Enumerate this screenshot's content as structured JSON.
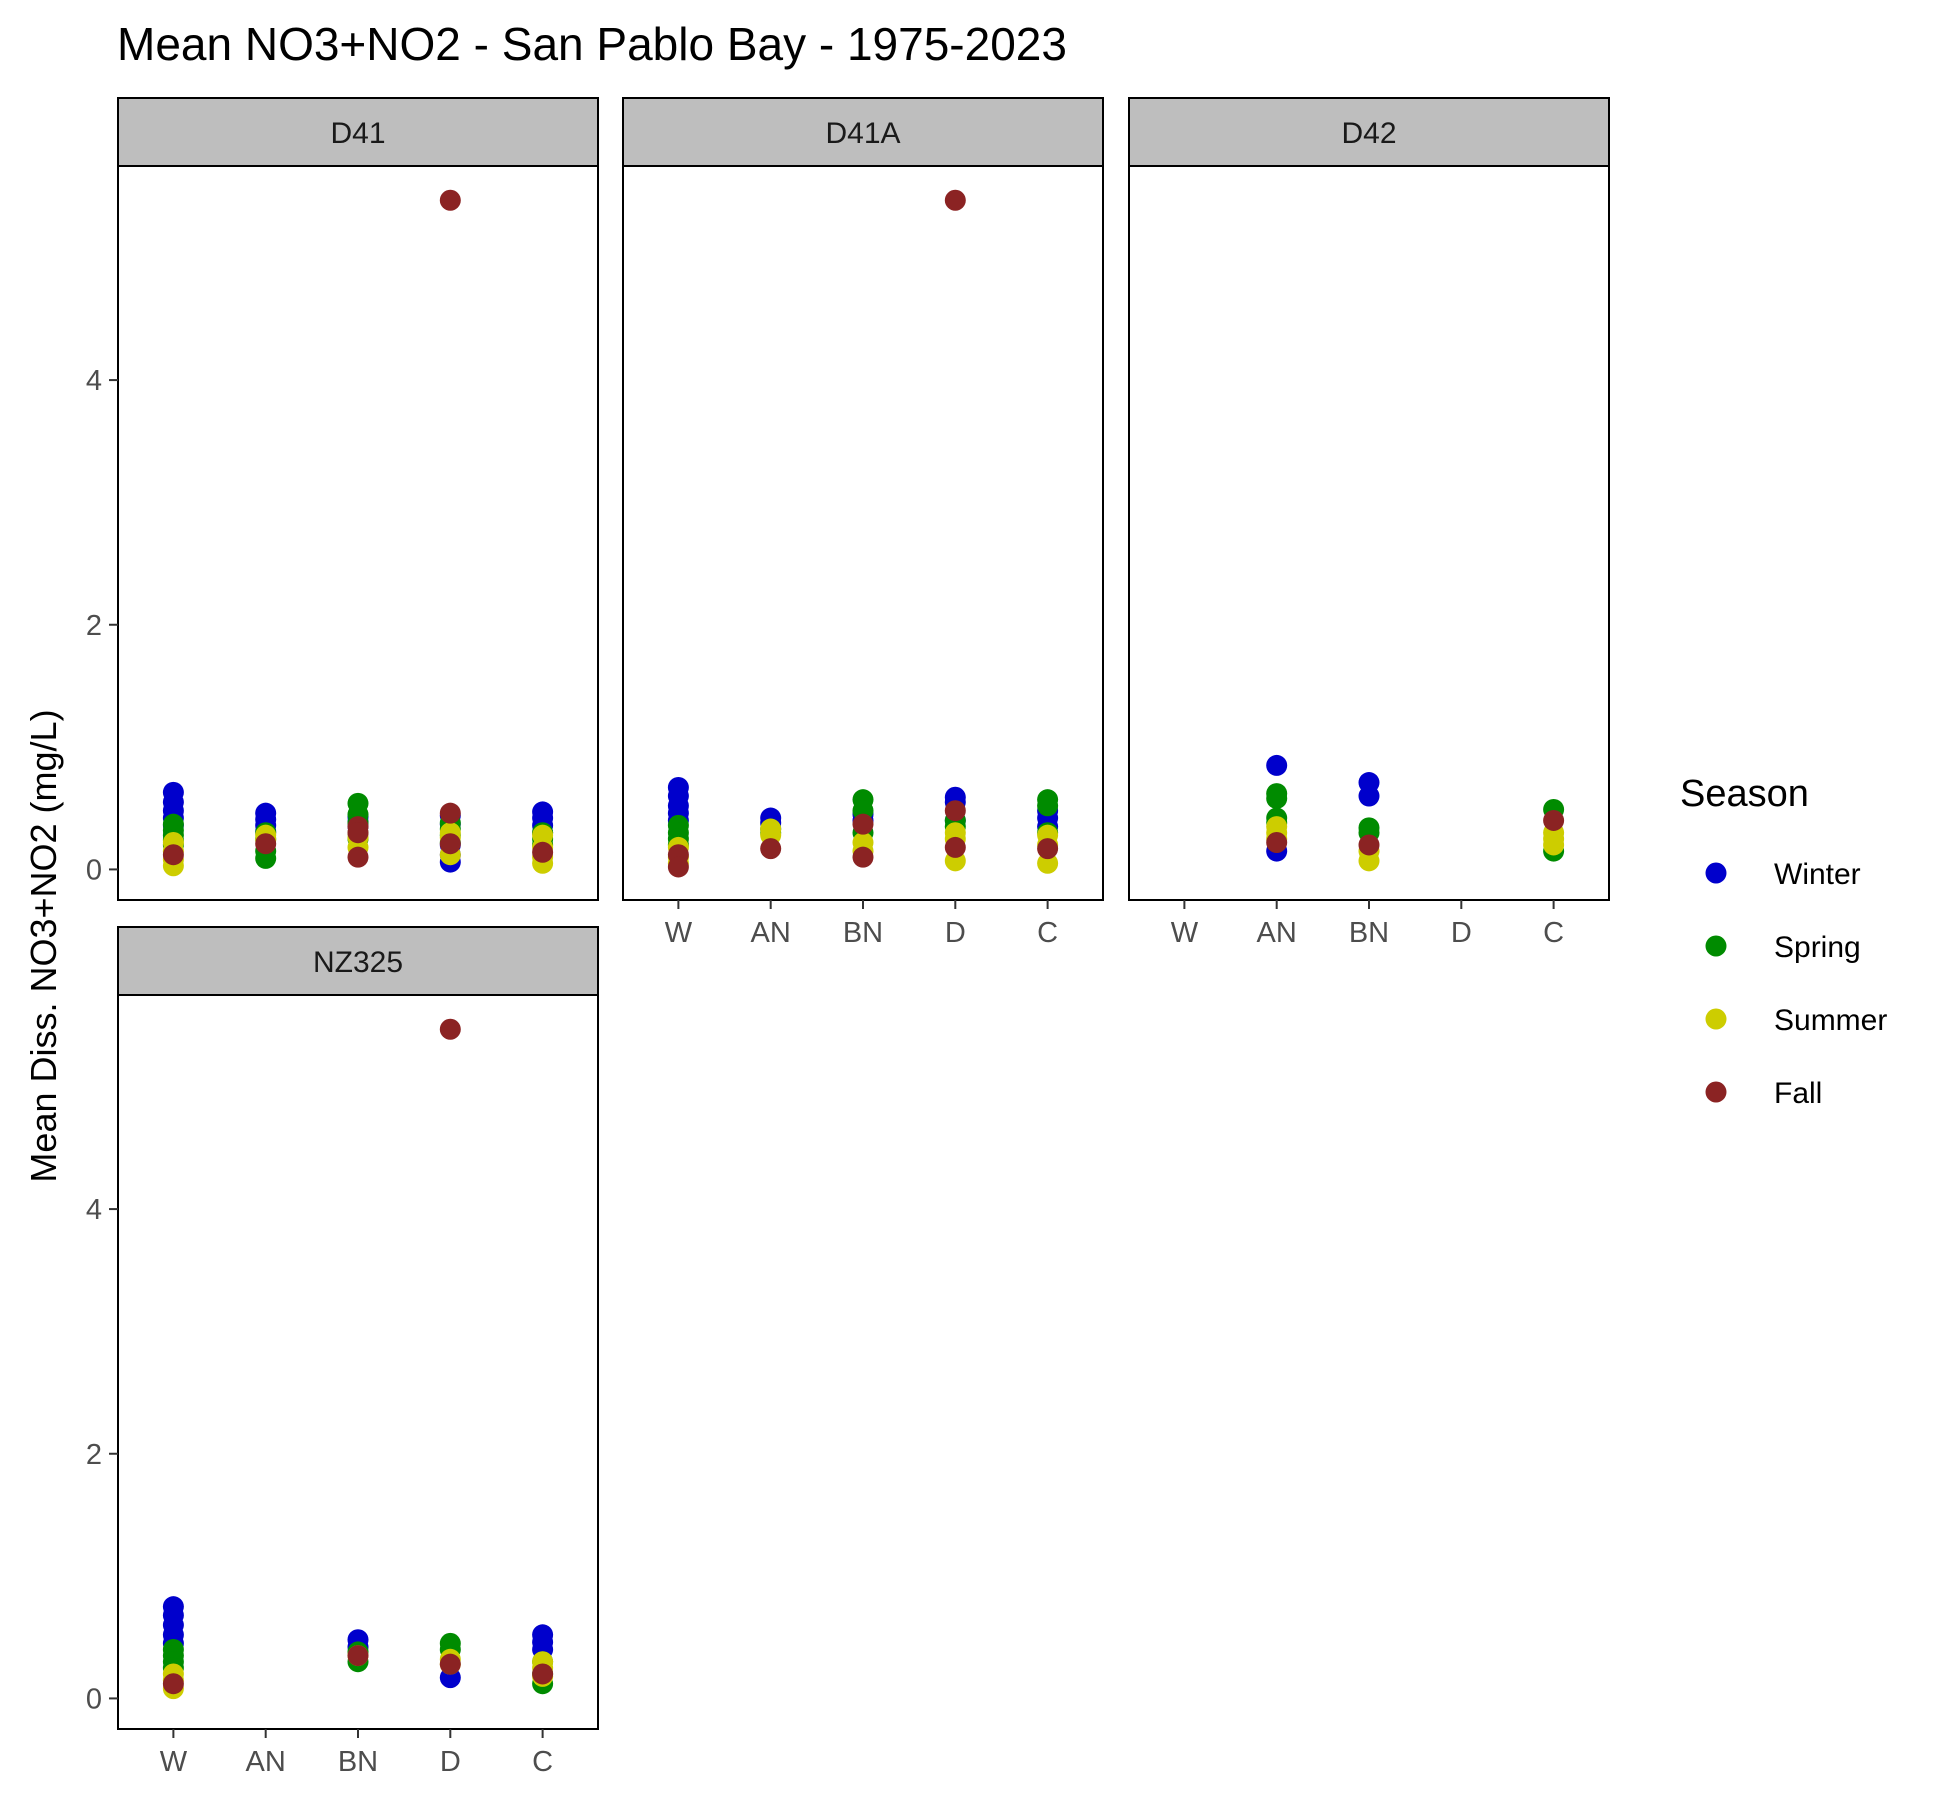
{
  "chart_data": {
    "type": "scatter",
    "title": "Mean NO3+NO2 - San Pablo Bay - 1975-2023",
    "xlabel": "",
    "ylabel": "Mean Diss. NO3+NO2 (mg/L)",
    "categories": [
      "W",
      "AN",
      "BN",
      "D",
      "C"
    ],
    "yticks": [
      "0",
      "2",
      "4"
    ],
    "ylim": [
      -0.25,
      5.75
    ],
    "facet_layout": "wrap-2x3",
    "grid": false,
    "legend": {
      "title": "Season",
      "position": "right",
      "entries": [
        {
          "name": "Winter",
          "color": "#0000CC"
        },
        {
          "name": "Spring",
          "color": "#008B00"
        },
        {
          "name": "Summer",
          "color": "#CDCD00"
        },
        {
          "name": "Fall",
          "color": "#8B2323"
        }
      ]
    },
    "panels": [
      {
        "label": "D41",
        "series": [
          {
            "season": "Winter",
            "points": [
              [
                "W",
                0.63
              ],
              [
                "W",
                0.55
              ],
              [
                "W",
                0.48
              ],
              [
                "W",
                0.42
              ],
              [
                "W",
                0.36
              ],
              [
                "AN",
                0.46
              ],
              [
                "AN",
                0.41
              ],
              [
                "AN",
                0.36
              ],
              [
                "AN",
                0.31
              ],
              [
                "BN",
                0.43
              ],
              [
                "BN",
                0.39
              ],
              [
                "BN",
                0.35
              ],
              [
                "BN",
                0.3
              ],
              [
                "D",
                0.44
              ],
              [
                "D",
                0.37
              ],
              [
                "D",
                0.2
              ],
              [
                "D",
                0.12
              ],
              [
                "D",
                0.06
              ],
              [
                "C",
                0.47
              ],
              [
                "C",
                0.42
              ],
              [
                "C",
                0.36
              ],
              [
                "C",
                0.3
              ]
            ]
          },
          {
            "season": "Spring",
            "points": [
              [
                "W",
                0.37
              ],
              [
                "W",
                0.32
              ],
              [
                "W",
                0.28
              ],
              [
                "W",
                0.24
              ],
              [
                "W",
                0.2
              ],
              [
                "AN",
                0.3
              ],
              [
                "AN",
                0.25
              ],
              [
                "AN",
                0.15
              ],
              [
                "AN",
                0.09
              ],
              [
                "BN",
                0.54
              ],
              [
                "BN",
                0.45
              ],
              [
                "BN",
                0.38
              ],
              [
                "BN",
                0.25
              ],
              [
                "D",
                0.38
              ],
              [
                "D",
                0.33
              ],
              [
                "D",
                0.28
              ],
              [
                "D",
                0.22
              ],
              [
                "C",
                0.3
              ],
              [
                "C",
                0.25
              ],
              [
                "C",
                0.2
              ]
            ]
          },
          {
            "season": "Summer",
            "points": [
              [
                "W",
                0.22
              ],
              [
                "W",
                0.15
              ],
              [
                "W",
                0.08
              ],
              [
                "W",
                0.03
              ],
              [
                "AN",
                0.28
              ],
              [
                "AN",
                0.24
              ],
              [
                "BN",
                0.3
              ],
              [
                "BN",
                0.26
              ],
              [
                "BN",
                0.18
              ],
              [
                "D",
                0.3
              ],
              [
                "D",
                0.26
              ],
              [
                "D",
                0.12
              ],
              [
                "C",
                0.28
              ],
              [
                "C",
                0.18
              ],
              [
                "C",
                0.1
              ],
              [
                "C",
                0.05
              ]
            ]
          },
          {
            "season": "Fall",
            "points": [
              [
                "W",
                0.12
              ],
              [
                "AN",
                0.21
              ],
              [
                "BN",
                0.35
              ],
              [
                "BN",
                0.3
              ],
              [
                "BN",
                0.1
              ],
              [
                "D",
                5.47
              ],
              [
                "D",
                0.46
              ],
              [
                "D",
                0.21
              ],
              [
                "C",
                0.14
              ]
            ]
          }
        ]
      },
      {
        "label": "D41A",
        "series": [
          {
            "season": "Winter",
            "points": [
              [
                "W",
                0.67
              ],
              [
                "W",
                0.6
              ],
              [
                "W",
                0.52
              ],
              [
                "W",
                0.46
              ],
              [
                "W",
                0.4
              ],
              [
                "AN",
                0.42
              ],
              [
                "AN",
                0.38
              ],
              [
                "BN",
                0.45
              ],
              [
                "BN",
                0.4
              ],
              [
                "D",
                0.59
              ],
              [
                "D",
                0.55
              ],
              [
                "D",
                0.4
              ],
              [
                "C",
                0.48
              ],
              [
                "C",
                0.42
              ],
              [
                "C",
                0.35
              ]
            ]
          },
          {
            "season": "Spring",
            "points": [
              [
                "W",
                0.36
              ],
              [
                "W",
                0.3
              ],
              [
                "W",
                0.25
              ],
              [
                "W",
                0.2
              ],
              [
                "AN",
                0.33
              ],
              [
                "AN",
                0.3
              ],
              [
                "BN",
                0.57
              ],
              [
                "BN",
                0.48
              ],
              [
                "BN",
                0.3
              ],
              [
                "D",
                0.4
              ],
              [
                "D",
                0.35
              ],
              [
                "C",
                0.57
              ],
              [
                "C",
                0.52
              ],
              [
                "C",
                0.3
              ]
            ]
          },
          {
            "season": "Summer",
            "points": [
              [
                "W",
                0.18
              ],
              [
                "W",
                0.1
              ],
              [
                "W",
                0.05
              ],
              [
                "AN",
                0.33
              ],
              [
                "AN",
                0.28
              ],
              [
                "BN",
                0.22
              ],
              [
                "BN",
                0.15
              ],
              [
                "D",
                0.3
              ],
              [
                "D",
                0.25
              ],
              [
                "D",
                0.07
              ],
              [
                "C",
                0.28
              ],
              [
                "C",
                0.2
              ],
              [
                "C",
                0.05
              ]
            ]
          },
          {
            "season": "Fall",
            "points": [
              [
                "W",
                0.12
              ],
              [
                "W",
                0.02
              ],
              [
                "AN",
                0.17
              ],
              [
                "BN",
                0.37
              ],
              [
                "BN",
                0.1
              ],
              [
                "D",
                5.47
              ],
              [
                "D",
                0.48
              ],
              [
                "D",
                0.18
              ],
              [
                "C",
                0.17
              ]
            ]
          }
        ]
      },
      {
        "label": "D42",
        "series": [
          {
            "season": "Winter",
            "points": [
              [
                "AN",
                0.85
              ],
              [
                "AN",
                0.15
              ],
              [
                "BN",
                0.71
              ],
              [
                "BN",
                0.6
              ]
            ]
          },
          {
            "season": "Spring",
            "points": [
              [
                "AN",
                0.62
              ],
              [
                "AN",
                0.58
              ],
              [
                "AN",
                0.42
              ],
              [
                "AN",
                0.38
              ],
              [
                "BN",
                0.34
              ],
              [
                "BN",
                0.3
              ],
              [
                "C",
                0.49
              ],
              [
                "C",
                0.15
              ]
            ]
          },
          {
            "season": "Summer",
            "points": [
              [
                "AN",
                0.35
              ],
              [
                "AN",
                0.3
              ],
              [
                "AN",
                0.25
              ],
              [
                "BN",
                0.15
              ],
              [
                "BN",
                0.07
              ],
              [
                "C",
                0.3
              ],
              [
                "C",
                0.25
              ],
              [
                "C",
                0.2
              ]
            ]
          },
          {
            "season": "Fall",
            "points": [
              [
                "AN",
                0.22
              ],
              [
                "BN",
                0.2
              ],
              [
                "C",
                0.4
              ]
            ]
          }
        ]
      },
      {
        "label": "NZ325",
        "series": [
          {
            "season": "Winter",
            "points": [
              [
                "W",
                0.75
              ],
              [
                "W",
                0.68
              ],
              [
                "W",
                0.6
              ],
              [
                "W",
                0.52
              ],
              [
                "W",
                0.45
              ],
              [
                "BN",
                0.48
              ],
              [
                "BN",
                0.42
              ],
              [
                "D",
                0.17
              ],
              [
                "C",
                0.52
              ],
              [
                "C",
                0.46
              ],
              [
                "C",
                0.4
              ]
            ]
          },
          {
            "season": "Spring",
            "points": [
              [
                "W",
                0.4
              ],
              [
                "W",
                0.35
              ],
              [
                "W",
                0.3
              ],
              [
                "W",
                0.25
              ],
              [
                "BN",
                0.38
              ],
              [
                "BN",
                0.3
              ],
              [
                "D",
                0.45
              ],
              [
                "D",
                0.4
              ],
              [
                "C",
                0.3
              ],
              [
                "C",
                0.2
              ],
              [
                "C",
                0.12
              ]
            ]
          },
          {
            "season": "Summer",
            "points": [
              [
                "W",
                0.2
              ],
              [
                "W",
                0.15
              ],
              [
                "W",
                0.08
              ],
              [
                "BN",
                0.35
              ],
              [
                "D",
                0.32
              ],
              [
                "D",
                0.28
              ],
              [
                "C",
                0.3
              ],
              [
                "C",
                0.25
              ],
              [
                "C",
                0.18
              ]
            ]
          },
          {
            "season": "Fall",
            "points": [
              [
                "W",
                0.12
              ],
              [
                "BN",
                0.35
              ],
              [
                "D",
                5.47
              ],
              [
                "D",
                0.28
              ],
              [
                "C",
                0.2
              ]
            ]
          }
        ]
      }
    ]
  }
}
